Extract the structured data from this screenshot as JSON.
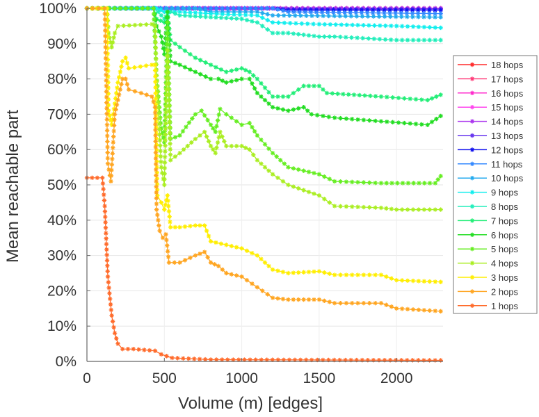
{
  "chart_data": {
    "type": "line",
    "title": "",
    "xlabel": "Volume (m) [edges]",
    "ylabel": "Mean reachable part",
    "xlim": [
      0,
      2300
    ],
    "ylim": [
      0,
      100
    ],
    "xticks": [
      0,
      500,
      1000,
      1500,
      2000
    ],
    "xtick_labels": [
      "0",
      "500",
      "1000",
      "1500",
      "2000"
    ],
    "yticks": [
      0,
      10,
      20,
      30,
      40,
      50,
      60,
      70,
      80,
      90,
      100
    ],
    "ytick_labels": [
      "0%",
      "10%",
      "20%",
      "30%",
      "40%",
      "50%",
      "60%",
      "70%",
      "80%",
      "90%",
      "100%"
    ],
    "grid": true,
    "legend_position": "right",
    "series": [
      {
        "name": "18 hops",
        "color": "#ff2a2a",
        "points": [
          [
            0,
            100
          ],
          [
            2285,
            100
          ]
        ]
      },
      {
        "name": "17 hops",
        "color": "#ff3d7a",
        "points": [
          [
            0,
            100
          ],
          [
            2285,
            100
          ]
        ]
      },
      {
        "name": "16 hops",
        "color": "#ff2acc",
        "points": [
          [
            0,
            100
          ],
          [
            2285,
            100
          ]
        ]
      },
      {
        "name": "15 hops",
        "color": "#ff44ee",
        "points": [
          [
            0,
            100
          ],
          [
            2285,
            100
          ]
        ]
      },
      {
        "name": "14 hops",
        "color": "#aa33ee",
        "points": [
          [
            0,
            100
          ],
          [
            2285,
            100
          ]
        ]
      },
      {
        "name": "13 hops",
        "color": "#6633ee",
        "points": [
          [
            0,
            100
          ],
          [
            1200,
            100
          ],
          [
            1300,
            99.8
          ],
          [
            2285,
            99.8
          ]
        ]
      },
      {
        "name": "12 hops",
        "color": "#1111ee",
        "points": [
          [
            0,
            100
          ],
          [
            1200,
            100
          ],
          [
            1300,
            99.5
          ],
          [
            2285,
            99.5
          ]
        ]
      },
      {
        "name": "11 hops",
        "color": "#3388ff",
        "points": [
          [
            0,
            100
          ],
          [
            1200,
            100
          ],
          [
            1300,
            99
          ],
          [
            2285,
            98.5
          ]
        ]
      },
      {
        "name": "10 hops",
        "color": "#22aaee",
        "points": [
          [
            0,
            100
          ],
          [
            700,
            100
          ],
          [
            800,
            99
          ],
          [
            1100,
            99
          ],
          [
            1200,
            98
          ],
          [
            2285,
            97.5
          ]
        ]
      },
      {
        "name": "9 hops",
        "color": "#11eeee",
        "points": [
          [
            0,
            100
          ],
          [
            450,
            100
          ],
          [
            500,
            99
          ],
          [
            600,
            99
          ],
          [
            800,
            98.5
          ],
          [
            1100,
            98
          ],
          [
            1200,
            96
          ],
          [
            1500,
            95.5
          ],
          [
            2000,
            95
          ],
          [
            2285,
            94.5
          ]
        ]
      },
      {
        "name": "8 hops",
        "color": "#22eebb",
        "points": [
          [
            0,
            100
          ],
          [
            430,
            100
          ],
          [
            460,
            99
          ],
          [
            500,
            97
          ],
          [
            540,
            99
          ],
          [
            600,
            98
          ],
          [
            800,
            97.5
          ],
          [
            1000,
            97
          ],
          [
            1100,
            96
          ],
          [
            1200,
            93
          ],
          [
            1300,
            93
          ],
          [
            1500,
            92
          ],
          [
            1600,
            92
          ],
          [
            2000,
            91
          ],
          [
            2285,
            91
          ]
        ]
      },
      {
        "name": "7 hops",
        "color": "#22ee77",
        "points": [
          [
            0,
            100
          ],
          [
            430,
            100
          ],
          [
            450,
            97
          ],
          [
            500,
            96
          ],
          [
            520,
            99
          ],
          [
            540,
            91
          ],
          [
            600,
            89
          ],
          [
            700,
            86
          ],
          [
            800,
            84
          ],
          [
            900,
            82
          ],
          [
            1000,
            83
          ],
          [
            1050,
            82
          ],
          [
            1100,
            80
          ],
          [
            1200,
            75
          ],
          [
            1300,
            75
          ],
          [
            1400,
            78
          ],
          [
            1500,
            78
          ],
          [
            1550,
            76
          ],
          [
            1900,
            75
          ],
          [
            2200,
            74
          ],
          [
            2285,
            75.5
          ]
        ]
      },
      {
        "name": "6 hops",
        "color": "#22dd22",
        "points": [
          [
            0,
            100
          ],
          [
            430,
            100
          ],
          [
            450,
            95
          ],
          [
            480,
            92
          ],
          [
            500,
            87
          ],
          [
            520,
            99
          ],
          [
            540,
            85
          ],
          [
            600,
            84
          ],
          [
            700,
            82
          ],
          [
            800,
            80
          ],
          [
            850,
            80
          ],
          [
            900,
            79
          ],
          [
            1000,
            80
          ],
          [
            1050,
            80
          ],
          [
            1100,
            76
          ],
          [
            1200,
            72
          ],
          [
            1300,
            71
          ],
          [
            1400,
            72
          ],
          [
            1450,
            70
          ],
          [
            1600,
            69
          ],
          [
            1900,
            68
          ],
          [
            2200,
            67
          ],
          [
            2285,
            69.5
          ]
        ]
      },
      {
        "name": "5 hops",
        "color": "#66ee22",
        "points": [
          [
            0,
            100
          ],
          [
            430,
            100
          ],
          [
            450,
            81
          ],
          [
            480,
            66
          ],
          [
            500,
            62
          ],
          [
            520,
            96
          ],
          [
            540,
            63
          ],
          [
            600,
            64
          ],
          [
            700,
            70
          ],
          [
            740,
            71
          ],
          [
            800,
            67
          ],
          [
            830,
            65
          ],
          [
            860,
            71.5
          ],
          [
            900,
            70
          ],
          [
            1000,
            67
          ],
          [
            1050,
            67.5
          ],
          [
            1100,
            64
          ],
          [
            1200,
            59
          ],
          [
            1300,
            55
          ],
          [
            1500,
            53
          ],
          [
            1600,
            51
          ],
          [
            1900,
            50.5
          ],
          [
            2250,
            50.5
          ],
          [
            2285,
            52.5
          ]
        ]
      },
      {
        "name": "4 hops",
        "color": "#aaee22",
        "points": [
          [
            0,
            100
          ],
          [
            130,
            100
          ],
          [
            140,
            93
          ],
          [
            160,
            89
          ],
          [
            180,
            93
          ],
          [
            200,
            95
          ],
          [
            420,
            95.5
          ],
          [
            440,
            95
          ],
          [
            450,
            81
          ],
          [
            480,
            55
          ],
          [
            500,
            50
          ],
          [
            520,
            88
          ],
          [
            540,
            57
          ],
          [
            600,
            59
          ],
          [
            700,
            63
          ],
          [
            760,
            65
          ],
          [
            800,
            61
          ],
          [
            830,
            59
          ],
          [
            860,
            65
          ],
          [
            900,
            61
          ],
          [
            1000,
            61
          ],
          [
            1050,
            60
          ],
          [
            1100,
            57
          ],
          [
            1200,
            53
          ],
          [
            1300,
            50
          ],
          [
            1500,
            47
          ],
          [
            1600,
            44
          ],
          [
            1900,
            43.5
          ],
          [
            2000,
            43
          ],
          [
            2285,
            43
          ]
        ]
      },
      {
        "name": "3 hops",
        "color": "#ffee00",
        "points": [
          [
            0,
            100
          ],
          [
            130,
            100
          ],
          [
            140,
            71
          ],
          [
            160,
            67
          ],
          [
            180,
            73
          ],
          [
            200,
            79
          ],
          [
            230,
            85
          ],
          [
            250,
            86
          ],
          [
            270,
            83
          ],
          [
            420,
            84
          ],
          [
            440,
            84
          ],
          [
            455,
            47
          ],
          [
            480,
            45
          ],
          [
            500,
            43
          ],
          [
            520,
            47
          ],
          [
            540,
            38
          ],
          [
            600,
            38
          ],
          [
            700,
            38.5
          ],
          [
            760,
            38.5
          ],
          [
            800,
            34
          ],
          [
            900,
            33
          ],
          [
            1000,
            32
          ],
          [
            1100,
            30
          ],
          [
            1200,
            26
          ],
          [
            1300,
            25
          ],
          [
            1500,
            25.5
          ],
          [
            1600,
            24.5
          ],
          [
            1900,
            24.5
          ],
          [
            2000,
            23
          ],
          [
            2285,
            22.5
          ]
        ]
      },
      {
        "name": "2 hops",
        "color": "#ffa520",
        "points": [
          [
            0,
            100
          ],
          [
            115,
            100
          ],
          [
            135,
            56
          ],
          [
            155,
            51
          ],
          [
            180,
            70
          ],
          [
            200,
            74
          ],
          [
            230,
            80
          ],
          [
            250,
            80
          ],
          [
            270,
            77
          ],
          [
            350,
            76
          ],
          [
            420,
            75
          ],
          [
            440,
            72
          ],
          [
            450,
            43
          ],
          [
            470,
            37
          ],
          [
            490,
            35
          ],
          [
            510,
            36
          ],
          [
            530,
            28
          ],
          [
            600,
            28
          ],
          [
            700,
            30
          ],
          [
            760,
            31
          ],
          [
            800,
            28
          ],
          [
            850,
            27
          ],
          [
            900,
            25
          ],
          [
            1000,
            24
          ],
          [
            1100,
            21
          ],
          [
            1200,
            18
          ],
          [
            1300,
            17.5
          ],
          [
            1500,
            17.5
          ],
          [
            1600,
            16.5
          ],
          [
            1900,
            16.5
          ],
          [
            2000,
            15
          ],
          [
            2285,
            14.2
          ]
        ]
      },
      {
        "name": "1 hops",
        "color": "#ff6a2a",
        "points": [
          [
            0,
            52
          ],
          [
            100,
            52
          ],
          [
            115,
            44
          ],
          [
            135,
            24
          ],
          [
            160,
            13
          ],
          [
            180,
            8
          ],
          [
            200,
            5
          ],
          [
            230,
            3.5
          ],
          [
            300,
            3.5
          ],
          [
            440,
            3
          ],
          [
            480,
            2
          ],
          [
            550,
            1
          ],
          [
            800,
            0.5
          ],
          [
            2285,
            0.3
          ]
        ]
      }
    ]
  }
}
